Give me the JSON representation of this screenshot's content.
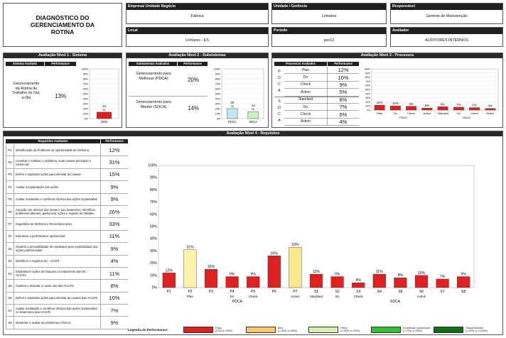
{
  "title": "DIAGNÓSTICO DO GERENCIAMENTO DA ROTINA",
  "info": {
    "empresa": {
      "label": "Empresa/ Unidade Negócio",
      "value": "Fábrica"
    },
    "unidade": {
      "label": "Unidade / Gerência",
      "value": "Linhares"
    },
    "responsavel": {
      "label": "Responsável",
      "value": "Gerente de Manutenção"
    },
    "local": {
      "label": "Local",
      "value": "Linhares - ES"
    },
    "periodo": {
      "label": "Período",
      "value": "jan/12"
    },
    "avaliador": {
      "label": "Avaliador",
      "value": "AUDITORES INTERNOS"
    }
  },
  "nivel1": {
    "title": "Avaliação Nível 1 - Sistema",
    "col1": "Sistema Avaliado",
    "col2": "Performance",
    "system": "Gerenciamento da Rotina do Trabalho do Dia-a-Dia",
    "performance": "13%",
    "chart_data": {
      "type": "bar",
      "categories": [
        "GRD"
      ],
      "values": [
        13
      ],
      "data_labels": [
        "13 %"
      ],
      "ylim": [
        0,
        100
      ],
      "yticks": [
        "100%",
        "90%",
        "80%",
        "70%",
        "60%",
        "50%",
        "40%",
        "30%",
        "20%",
        "10%",
        "0%"
      ],
      "color": "#e02020"
    }
  },
  "nivel2": {
    "title": "Avaliação Nível 2 - Subsistemas",
    "col1": "Subsistemas Avaliados",
    "col2": "Performance",
    "rows": [
      {
        "name": "Gerenciamento para Melhorar (PDCA)",
        "value": "20%"
      },
      {
        "name": "Gerenciamento para Manter (SDCA)",
        "value": "14%"
      }
    ],
    "chart_data": {
      "type": "bar",
      "categories": [
        "PDCA",
        "SDCA"
      ],
      "values": [
        20,
        14
      ],
      "data_labels": [
        "20 %",
        "14 %"
      ],
      "ylim": [
        0,
        100
      ],
      "yticks": [
        "100%",
        "90%",
        "80%",
        "70%",
        "60%",
        "50%",
        "40%",
        "30%",
        "20%",
        "10%",
        "0%"
      ],
      "colors": [
        "#bfe8f0",
        "#c8f0c0"
      ]
    }
  },
  "nivel3": {
    "title": "Avaliação Nível 3 - Processos",
    "col1": "Processos Avaliados",
    "col2": "Performance",
    "pdca_letters": [
      "P",
      "D",
      "C",
      "A"
    ],
    "sdca_letters": [
      "S",
      "D",
      "C",
      "A"
    ],
    "rows": [
      {
        "name": "Plan",
        "value": "12%"
      },
      {
        "name": "Do",
        "value": "10%"
      },
      {
        "name": "Check",
        "value": "9%"
      },
      {
        "name": "Action",
        "value": "5%"
      },
      {
        "name": "Standard",
        "value": "8%"
      },
      {
        "name": "Do",
        "value": "7%"
      },
      {
        "name": "Check",
        "value": "6%"
      },
      {
        "name": "Action",
        "value": "4%"
      }
    ],
    "chart_data": {
      "type": "bar",
      "categories": [
        "Plan",
        "Do",
        "Check",
        "Action",
        "Standard",
        "Do",
        "Check",
        "Action"
      ],
      "values": [
        12,
        10,
        9,
        5,
        8,
        7,
        6,
        4
      ],
      "data_labels": [
        "12%",
        "10%",
        "9%",
        "5%",
        "8%",
        "7%",
        "6%",
        "4%"
      ],
      "groups": [
        "PDCA",
        "SDCA"
      ],
      "ylim": [
        0,
        100
      ],
      "yticks": [
        "100%",
        "90%",
        "80%",
        "70%",
        "60%",
        "50%",
        "40%",
        "30%",
        "20%",
        "10%",
        "0%"
      ],
      "color": "#e02020"
    }
  },
  "nivel4": {
    "title": "Avaliação Nível 4 - Requisitos",
    "col1": "Requisitos Avaliados",
    "col2": "Performance",
    "rows": [
      {
        "id": "P1",
        "desc": "Identificação do Problema ou oportunidade de melhoria",
        "value": "12%"
      },
      {
        "id": "P2",
        "desc": "Levantar e Analisar o problema, suas causas principais e causa raiz",
        "value": "31%"
      },
      {
        "id": "P3",
        "desc": "Definir e implantar ações para eliminar as causas",
        "value": "15%"
      },
      {
        "id": "P4",
        "desc": "Avaliar a implantação das ações",
        "value": "9%"
      },
      {
        "id": "P5",
        "desc": "Avaliar resultados e confirmar eficácia das ações implantadas",
        "value": "9%"
      },
      {
        "id": "P6",
        "desc": "Atuação nos desvios das metas e seu tratamento, identificar problemas latentes, padronizar ações e registro do trabalho",
        "value": "26%"
      },
      {
        "id": "P7",
        "desc": "Sugestões de Melhoria e Reconhecimento",
        "value": "33%"
      },
      {
        "id": "S1",
        "desc": "Estruturar a performance operacional",
        "value": "11%"
      },
      {
        "id": "S2",
        "desc": "Garantir a previsibilidade de resultados pela repetibilidade das ações padronizadas",
        "value": "9%"
      },
      {
        "id": "S3",
        "desc": "Identificar e registrar NC - ACIAP",
        "value": "4%"
      },
      {
        "id": "S4",
        "desc": "Estabelecer ações de bloqueio no tratamento das NC - ACIAPs",
        "value": "11%"
      },
      {
        "id": "S5",
        "desc": "Analisar e levantar a causa raiz das ACIAPs",
        "value": "8%"
      },
      {
        "id": "S6",
        "desc": "Definir e implantar ações para eliminar as causas das ACIAPs",
        "value": "10%"
      },
      {
        "id": "S7",
        "desc": "Avaliar resultados e confirmar eficácia das ações implantadas no tratamento das ACIAPs",
        "value": "7%"
      },
      {
        "id": "S8",
        "desc": "Monitorar e avaliar os problemas crônicos",
        "value": "9%"
      }
    ],
    "chart_data": {
      "type": "bar",
      "categories": [
        "P1",
        "P2",
        "P3",
        "P4",
        "P5",
        "P6",
        "P7",
        "S1",
        "S2",
        "S3",
        "S4",
        "S5",
        "S6",
        "S7",
        "S8"
      ],
      "sublabels": [
        "",
        "Plan",
        "",
        "Do",
        "Check",
        "",
        "Action",
        "Standard",
        "Do",
        "Check",
        "",
        "",
        "Action",
        "",
        ""
      ],
      "values": [
        12,
        31,
        15,
        9,
        9,
        26,
        33,
        11,
        9,
        4,
        11,
        8,
        10,
        7,
        9
      ],
      "data_labels": [
        "12%",
        "31%",
        "15%",
        "9%",
        "9%",
        "26%",
        "33%",
        "11%",
        "9%",
        "4%",
        "11%",
        "8%",
        "10%",
        "7%",
        "9%"
      ],
      "colors": [
        "#e02020",
        "#fff2a8",
        "#e02020",
        "#e02020",
        "#e02020",
        "#e02020",
        "#f8e888",
        "#e02020",
        "#e02020",
        "#e02020",
        "#e02020",
        "#e02020",
        "#e02020",
        "#e02020",
        "#e02020"
      ],
      "groups": [
        "PDCA",
        "SDCA"
      ],
      "ylim": [
        0,
        100
      ],
      "yticks": [
        "100%",
        "90%",
        "80%",
        "70%",
        "60%",
        "50%",
        "40%",
        "30%",
        "20%",
        "10%",
        "0%"
      ]
    }
  },
  "legend": {
    "title": "Legenda da Performance:",
    "items": [
      {
        "name": "Fraco",
        "range": "(0,0% a <30%)",
        "color": "#e02020"
      },
      {
        "name": "Bom",
        "range": "(>=30% a <50%)",
        "color": "#f8c870"
      },
      {
        "name": "Ótimo",
        "range": "(>=50% a <70%)",
        "color": "#d8f0b0"
      },
      {
        "name": "Excelência Operacional",
        "range": "(>=70% a <90%)",
        "color": "#30c030"
      },
      {
        "name": "Classe Mundial",
        "range": "(>=90% a <=100%)",
        "color": "#107010"
      }
    ]
  }
}
